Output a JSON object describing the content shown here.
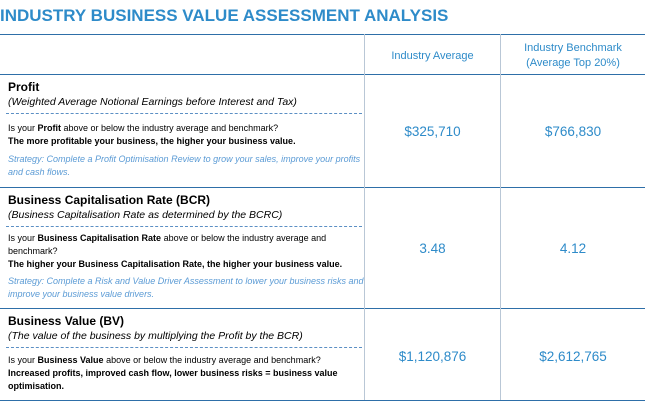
{
  "title": "INDUSTRY BUSINESS VALUE ASSESSMENT ANALYSIS",
  "headers": {
    "industry_average": "Industry Average",
    "benchmark_line1": "Industry Benchmark",
    "benchmark_line2": "(Average Top 20%)"
  },
  "sections": [
    {
      "title": "Profit",
      "subtitle": "(Weighted Average Notional Earnings before Interest and Tax)",
      "q_pre": "Is your ",
      "q_bold": "Profit",
      "q_post": " above or below the industry average and benchmark?",
      "q_line2": "The more profitable your business, the higher your business value.",
      "strategy": "Strategy: Complete a Profit Optimisation Review to grow your sales, improve your profits and cash flows.",
      "average": "$325,710",
      "benchmark": "$766,830"
    },
    {
      "title": "Business Capitalisation Rate (BCR)",
      "subtitle": "(Business Capitalisation Rate as determined by the BCRC)",
      "q_pre": "Is your ",
      "q_bold": "Business Capitalisation Rate",
      "q_post": " above or below the industry average and benchmark?",
      "q_line2": "The higher your Business Capitalisation Rate, the higher your business value.",
      "strategy": "Strategy: Complete a Risk and Value Driver Assessment to lower your business risks and improve your business value drivers.",
      "average": "3.48",
      "benchmark": "4.12"
    },
    {
      "title": "Business Value (BV)",
      "subtitle": "(The value of the business by multiplying the Profit by the BCR)",
      "q_pre": "Is your ",
      "q_bold": "Business Value",
      "q_post": " above or below the industry average and benchmark?",
      "q_line2": "Increased profits, improved cash flow, lower business risks = business value optimisation.",
      "average": "$1,120,876",
      "benchmark": "$2,612,765"
    }
  ]
}
